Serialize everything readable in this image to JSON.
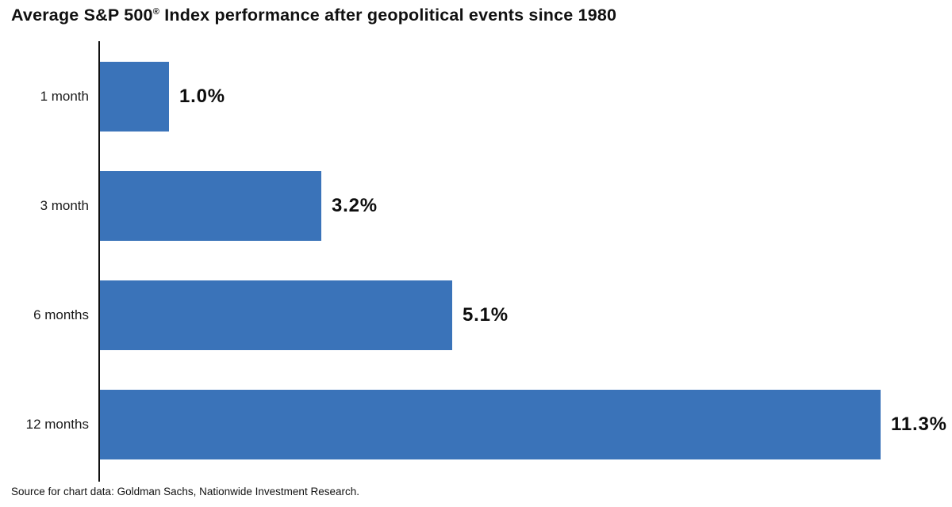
{
  "title_parts": {
    "prefix": "Average S&P 500",
    "reg": "®",
    "suffix": " Index performance after geopolitical events since 1980"
  },
  "source": "Source for chart data: Goldman Sachs, Nationwide Investment Research.",
  "chart_data": {
    "type": "bar",
    "orientation": "horizontal",
    "title": "Average S&P 500® Index performance after geopolitical events since 1980",
    "categories": [
      "1 month",
      "3 month",
      "6 months",
      "12 months"
    ],
    "values": [
      1.0,
      3.2,
      5.1,
      11.3
    ],
    "value_labels": [
      "1.0%",
      "3.2%",
      "5.1%",
      "11.3%"
    ],
    "xlabel": "",
    "ylabel": "",
    "xlim": [
      0,
      11.3
    ],
    "grid": false,
    "legend": "none",
    "bar_color": "#3A73B9",
    "axis_color": "#111111",
    "annotation": "value labels shown to the right of each bar"
  }
}
